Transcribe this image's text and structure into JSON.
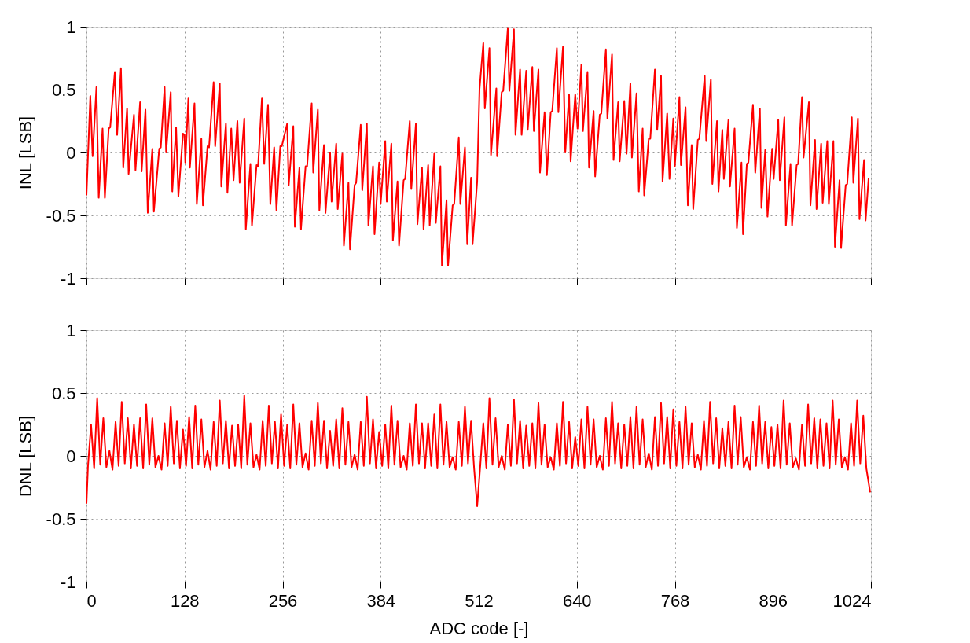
{
  "chart_data": [
    {
      "type": "line",
      "ylabel": "INL [LSB]",
      "xlim": [
        0,
        1024
      ],
      "xticks": [
        0,
        128,
        256,
        384,
        512,
        640,
        768,
        896,
        1024
      ],
      "ylim": [
        -1,
        1
      ],
      "yticks": [
        -1,
        -0.5,
        0,
        0.5,
        1
      ],
      "grid": true,
      "tick_labels": "y",
      "series": [
        {
          "color": "#ff0000",
          "x": [
            0,
            5,
            8,
            13,
            16,
            21,
            24,
            29,
            31,
            37,
            40,
            45,
            48,
            53,
            55,
            62,
            64,
            70,
            72,
            77,
            80,
            86,
            88,
            95,
            97,
            102,
            104,
            110,
            112,
            117,
            120,
            126,
            128,
            129,
            133,
            135,
            141,
            144,
            150,
            152,
            158,
            160,
            166,
            168,
            174,
            176,
            182,
            184,
            189,
            192,
            197,
            200,
            206,
            208,
            214,
            216,
            222,
            224,
            229,
            232,
            237,
            240,
            245,
            248,
            253,
            255,
            262,
            264,
            270,
            272,
            278,
            280,
            286,
            288,
            294,
            296,
            302,
            304,
            310,
            312,
            318,
            320,
            326,
            328,
            334,
            336,
            342,
            344,
            350,
            352,
            358,
            360,
            366,
            368,
            374,
            376,
            382,
            384,
            390,
            392,
            398,
            400,
            406,
            408,
            414,
            416,
            422,
            424,
            430,
            432,
            438,
            440,
            446,
            448,
            454,
            456,
            462,
            464,
            470,
            472,
            478,
            480,
            486,
            488,
            494,
            497,
            502,
            504,
            510,
            513,
            518,
            520,
            526,
            528,
            535,
            536,
            542,
            544,
            550,
            552,
            558,
            560,
            566,
            568,
            574,
            576,
            582,
            584,
            590,
            592,
            598,
            601,
            606,
            608,
            614,
            616,
            622,
            625,
            630,
            632,
            638,
            641,
            646,
            648,
            654,
            656,
            662,
            664,
            670,
            672,
            678,
            680,
            686,
            688,
            694,
            696,
            702,
            705,
            710,
            712,
            718,
            721,
            726,
            728,
            734,
            736,
            742,
            745,
            750,
            752,
            758,
            761,
            766,
            768,
            774,
            776,
            782,
            785,
            790,
            792,
            798,
            800,
            807,
            809,
            815,
            817,
            823,
            825,
            830,
            832,
            838,
            840,
            846,
            849,
            855,
            857,
            862,
            864,
            870,
            873,
            879,
            881,
            886,
            889,
            895,
            897,
            903,
            905,
            911,
            913,
            919,
            921,
            927,
            929,
            934,
            936,
            943,
            945,
            951,
            953,
            959,
            961,
            967,
            969,
            975,
            977,
            983,
            985,
            991,
            993,
            999,
            1001,
            1007,
            1009,
            1015,
            1017,
            1021
          ],
          "values": [
            -0.34,
            0.45,
            -0.03,
            0.52,
            -0.36,
            0.19,
            -0.36,
            0.19,
            0.2,
            0.64,
            0.14,
            0.67,
            -0.12,
            0.35,
            -0.17,
            0.3,
            -0.14,
            0.4,
            -0.15,
            0.34,
            -0.48,
            0.03,
            -0.47,
            0.03,
            0.04,
            0.52,
            0.0,
            0.48,
            -0.31,
            0.2,
            -0.35,
            0.15,
            0.14,
            -0.08,
            0.43,
            -0.12,
            0.39,
            -0.41,
            0.11,
            -0.42,
            0.05,
            0.04,
            0.56,
            0.05,
            0.55,
            -0.27,
            0.23,
            -0.32,
            0.19,
            -0.22,
            0.25,
            -0.24,
            0.27,
            -0.61,
            -0.09,
            -0.58,
            -0.1,
            -0.11,
            0.43,
            -0.09,
            0.38,
            -0.41,
            0.04,
            -0.46,
            0.05,
            0.05,
            0.23,
            -0.26,
            0.21,
            -0.59,
            -0.12,
            -0.61,
            -0.11,
            -0.11,
            0.39,
            -0.16,
            0.34,
            -0.46,
            0.06,
            -0.48,
            0.0,
            -0.39,
            0.07,
            -0.45,
            -0.01,
            -0.74,
            -0.24,
            -0.77,
            -0.26,
            -0.24,
            0.22,
            -0.3,
            0.23,
            -0.58,
            -0.11,
            -0.65,
            -0.08,
            -0.41,
            0.09,
            -0.39,
            0.07,
            -0.7,
            -0.23,
            -0.74,
            -0.22,
            -0.21,
            0.25,
            -0.29,
            0.23,
            -0.57,
            -0.12,
            -0.61,
            -0.1,
            -0.58,
            -0.01,
            -0.56,
            -0.11,
            -0.9,
            -0.38,
            -0.9,
            -0.42,
            -0.41,
            0.12,
            -0.41,
            0.04,
            -0.73,
            -0.2,
            -0.73,
            -0.23,
            0.5,
            0.87,
            0.35,
            0.83,
            -0.02,
            0.51,
            -0.03,
            0.48,
            0.49,
            0.99,
            0.49,
            0.98,
            0.14,
            0.66,
            0.14,
            0.65,
            0.18,
            0.68,
            0.17,
            0.66,
            -0.16,
            0.32,
            -0.18,
            0.32,
            0.33,
            0.83,
            0.32,
            0.84,
            0.0,
            0.46,
            -0.07,
            0.46,
            0.19,
            0.7,
            0.17,
            0.64,
            -0.12,
            0.33,
            -0.19,
            0.3,
            0.31,
            0.82,
            0.27,
            0.78,
            -0.06,
            0.4,
            -0.07,
            0.41,
            -0.01,
            0.55,
            -0.04,
            0.47,
            -0.31,
            0.19,
            -0.34,
            0.11,
            0.11,
            0.66,
            0.18,
            0.61,
            -0.23,
            0.31,
            -0.21,
            0.27,
            -0.11,
            0.44,
            -0.1,
            0.36,
            -0.42,
            0.06,
            -0.45,
            0.1,
            0.11,
            0.61,
            0.09,
            0.58,
            -0.25,
            0.25,
            -0.31,
            0.18,
            -0.21,
            0.26,
            -0.27,
            0.19,
            -0.6,
            -0.08,
            -0.65,
            -0.09,
            -0.08,
            0.38,
            -0.16,
            0.35,
            -0.44,
            0.02,
            -0.51,
            0.03,
            -0.21,
            0.26,
            -0.22,
            0.28,
            -0.58,
            -0.09,
            -0.58,
            -0.1,
            -0.09,
            0.44,
            -0.04,
            0.4,
            -0.42,
            0.1,
            -0.45,
            0.07,
            -0.4,
            0.09,
            -0.41,
            0.09,
            -0.75,
            -0.22,
            -0.76,
            -0.26,
            -0.25,
            0.28,
            -0.24,
            0.27,
            -0.53,
            -0.06,
            -0.54,
            -0.2
          ]
        }
      ]
    },
    {
      "type": "line",
      "xlabel": "ADC code [-]",
      "ylabel": "DNL [LSB]",
      "xlim": [
        0,
        1024
      ],
      "xticks": [
        0,
        128,
        256,
        384,
        512,
        640,
        768,
        896,
        1024
      ],
      "ylim": [
        -1,
        1
      ],
      "yticks": [
        -1,
        -0.5,
        0,
        0.5,
        1
      ],
      "grid": true,
      "series": [
        {
          "color": "#ff0000",
          "x": [
            0,
            2,
            6,
            10,
            14,
            18,
            22,
            26,
            30,
            34,
            38,
            42,
            46,
            50,
            54,
            58,
            62,
            66,
            70,
            74,
            78,
            82,
            86,
            90,
            94,
            98,
            102,
            106,
            110,
            114,
            118,
            122,
            126,
            130,
            134,
            138,
            142,
            146,
            150,
            154,
            158,
            162,
            166,
            170,
            174,
            178,
            182,
            186,
            190,
            194,
            198,
            202,
            206,
            210,
            214,
            218,
            222,
            226,
            230,
            234,
            238,
            242,
            246,
            250,
            254,
            258,
            262,
            266,
            270,
            274,
            278,
            282,
            286,
            290,
            294,
            298,
            302,
            306,
            310,
            314,
            318,
            322,
            326,
            330,
            334,
            338,
            342,
            346,
            350,
            354,
            358,
            362,
            366,
            370,
            374,
            378,
            382,
            386,
            390,
            394,
            398,
            402,
            406,
            410,
            414,
            418,
            422,
            426,
            430,
            434,
            438,
            442,
            446,
            450,
            454,
            458,
            462,
            466,
            470,
            474,
            478,
            482,
            486,
            490,
            494,
            498,
            502,
            506,
            510,
            514,
            518,
            522,
            526,
            530,
            534,
            538,
            542,
            546,
            550,
            554,
            558,
            562,
            566,
            570,
            574,
            578,
            582,
            586,
            590,
            594,
            598,
            602,
            606,
            610,
            614,
            618,
            622,
            626,
            630,
            634,
            638,
            642,
            646,
            650,
            654,
            658,
            662,
            666,
            670,
            674,
            678,
            682,
            686,
            690,
            694,
            698,
            702,
            706,
            710,
            714,
            718,
            722,
            726,
            730,
            734,
            738,
            742,
            746,
            750,
            754,
            758,
            762,
            766,
            770,
            774,
            778,
            782,
            786,
            790,
            794,
            798,
            802,
            806,
            810,
            814,
            818,
            822,
            826,
            830,
            834,
            838,
            842,
            846,
            850,
            854,
            858,
            862,
            866,
            870,
            874,
            878,
            882,
            886,
            890,
            894,
            898,
            902,
            906,
            910,
            914,
            918,
            922,
            926,
            930,
            934,
            938,
            942,
            946,
            950,
            954,
            958,
            962,
            966,
            970,
            974,
            978,
            982,
            986,
            990,
            994,
            998,
            1002,
            1006,
            1010,
            1014,
            1018,
            1023
          ],
          "values": [
            -0.38,
            -0.08,
            0.25,
            -0.1,
            0.46,
            -0.07,
            0.3,
            -0.09,
            0.04,
            -0.11,
            0.27,
            -0.08,
            0.43,
            -0.06,
            0.3,
            -0.1,
            0.25,
            -0.08,
            0.3,
            -0.1,
            0.41,
            -0.07,
            0.3,
            -0.09,
            0.0,
            -0.11,
            0.26,
            -0.08,
            0.39,
            -0.06,
            0.28,
            -0.1,
            0.21,
            -0.08,
            0.31,
            -0.1,
            0.4,
            -0.07,
            0.29,
            -0.09,
            0.04,
            -0.11,
            0.27,
            -0.08,
            0.44,
            -0.06,
            0.28,
            -0.1,
            0.24,
            -0.08,
            0.25,
            -0.1,
            0.48,
            -0.07,
            0.26,
            -0.09,
            0.01,
            -0.11,
            0.28,
            -0.08,
            0.4,
            -0.06,
            0.27,
            -0.1,
            0.33,
            -0.08,
            0.25,
            -0.1,
            0.41,
            -0.07,
            0.26,
            -0.09,
            0.02,
            -0.11,
            0.28,
            -0.08,
            0.42,
            -0.06,
            0.28,
            -0.1,
            0.2,
            -0.08,
            0.29,
            -0.1,
            0.38,
            -0.07,
            0.27,
            -0.09,
            0.01,
            -0.11,
            0.27,
            -0.08,
            0.47,
            -0.06,
            0.29,
            -0.1,
            0.19,
            -0.08,
            0.25,
            -0.1,
            0.4,
            -0.07,
            0.28,
            -0.09,
            0.0,
            -0.11,
            0.26,
            -0.08,
            0.41,
            -0.06,
            0.26,
            -0.1,
            0.26,
            -0.08,
            0.33,
            -0.1,
            0.41,
            -0.07,
            0.27,
            -0.09,
            -0.01,
            -0.11,
            0.27,
            -0.08,
            0.39,
            -0.06,
            0.28,
            -0.1,
            -0.4,
            -0.08,
            0.26,
            -0.1,
            0.46,
            -0.07,
            0.3,
            -0.09,
            0.0,
            -0.11,
            0.25,
            -0.08,
            0.45,
            -0.06,
            0.28,
            -0.1,
            0.24,
            -0.08,
            0.26,
            -0.1,
            0.42,
            -0.07,
            0.25,
            -0.09,
            -0.01,
            -0.11,
            0.26,
            -0.08,
            0.43,
            -0.06,
            0.27,
            -0.1,
            0.15,
            -0.08,
            0.29,
            -0.1,
            0.39,
            -0.07,
            0.29,
            -0.09,
            0.0,
            -0.11,
            0.3,
            -0.08,
            0.43,
            -0.06,
            0.26,
            -0.1,
            0.25,
            -0.08,
            0.31,
            -0.1,
            0.39,
            -0.07,
            0.29,
            -0.09,
            0.02,
            -0.11,
            0.31,
            -0.08,
            0.42,
            -0.06,
            0.31,
            -0.1,
            0.37,
            -0.08,
            0.27,
            -0.1,
            0.39,
            -0.07,
            0.26,
            -0.09,
            0.01,
            -0.11,
            0.28,
            -0.08,
            0.43,
            -0.06,
            0.3,
            -0.1,
            0.22,
            -0.08,
            0.27,
            -0.1,
            0.4,
            -0.07,
            0.31,
            -0.09,
            -0.01,
            -0.11,
            0.27,
            -0.08,
            0.4,
            -0.06,
            0.27,
            -0.1,
            0.23,
            -0.08,
            0.25,
            -0.1,
            0.44,
            -0.07,
            0.26,
            -0.09,
            -0.02,
            -0.11,
            0.25,
            -0.08,
            0.41,
            -0.06,
            0.3,
            -0.1,
            0.29,
            -0.08,
            0.26,
            -0.1,
            0.44,
            -0.07,
            0.29,
            -0.09,
            -0.01,
            -0.11,
            0.26,
            -0.08,
            0.44,
            -0.06,
            0.32,
            -0.1,
            -0.29
          ]
        }
      ]
    }
  ]
}
